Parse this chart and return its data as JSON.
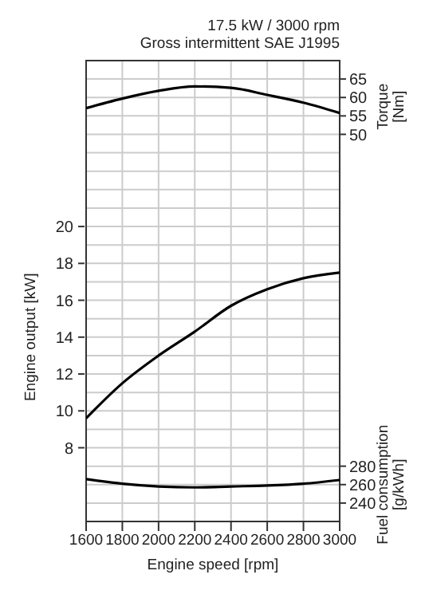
{
  "chart_data": {
    "type": "line",
    "title": "17.5 kW / 3000 rpm",
    "subtitle": "Gross intermittent SAE J1995",
    "xlabel": "Engine speed [rpm]",
    "ylabel": "Engine output [kW]",
    "y2label": "Torque [Nm]",
    "y3label": "Fuel consumption [g/kWh]",
    "x": [
      1600,
      1800,
      2000,
      2200,
      2400,
      2600,
      2800,
      3000
    ],
    "series": [
      {
        "color": "#000000",
        "axis": "y2",
        "values": [
          57.1,
          59.7,
          61.8,
          63.0,
          62.6,
          60.7,
          58.6,
          55.8
        ]
      },
      {
        "color": "#000000",
        "values": [
          9.6,
          11.5,
          13.0,
          14.3,
          15.7,
          16.6,
          17.2,
          17.5
        ]
      },
      {
        "color": "#000000",
        "axis": "y3",
        "values": [
          266,
          261,
          258,
          257,
          258,
          259,
          261,
          265
        ]
      }
    ],
    "xlim": [
      1600,
      3000
    ],
    "xticks": [
      1600,
      1800,
      2000,
      2200,
      2400,
      2600,
      2800,
      3000
    ],
    "ylim": [
      4,
      29
    ],
    "yticks": [
      {
        "value": 4,
        "label": null
      },
      {
        "value": 5,
        "label": null
      },
      {
        "value": 6,
        "label": null
      },
      {
        "value": 7,
        "label": null
      },
      8,
      {
        "value": 9,
        "label": null
      },
      10,
      {
        "value": 11,
        "label": null
      },
      12,
      {
        "value": 13,
        "label": null
      },
      14,
      {
        "value": 15,
        "label": null
      },
      16,
      {
        "value": 17,
        "label": null
      },
      18,
      {
        "value": 19,
        "label": null
      },
      20,
      {
        "value": 21,
        "label": null
      },
      {
        "value": 22,
        "label": null
      },
      {
        "value": 23,
        "label": null
      },
      {
        "value": 24,
        "label": null
      },
      {
        "value": 25,
        "label": null
      },
      {
        "value": 26,
        "label": null
      },
      {
        "value": 27,
        "label": null
      },
      {
        "value": 28,
        "label": null
      },
      {
        "value": 29,
        "label": null
      }
    ],
    "y2lim": [
      -55,
      70
    ],
    "y2ticks": [
      50,
      55,
      60,
      65
    ],
    "y3lim": [
      220,
      720
    ],
    "y3ticks": [
      240,
      260,
      280
    ],
    "grid": true,
    "marker": "none",
    "line_style": "solid"
  }
}
